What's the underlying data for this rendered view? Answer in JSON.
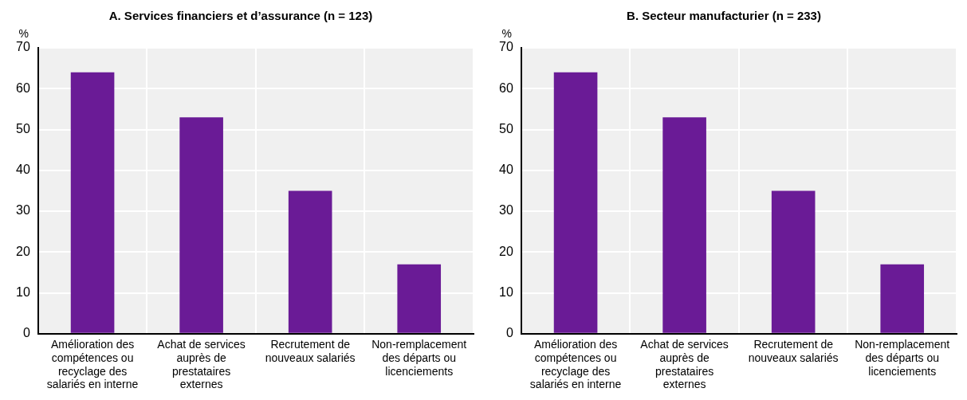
{
  "chart_data": [
    {
      "type": "bar",
      "title": "A. Services financiers et d’assurance (n = 123)",
      "ylabel": "%",
      "categories": [
        "Amélioration des compétences ou recyclage des salariés en interne",
        "Achat de services auprès de prestataires externes",
        "Recrutement de nouveaux salariés",
        "Non-remplacement des départs ou licenciements"
      ],
      "values": [
        64,
        53,
        35,
        17
      ],
      "color": "#6a1b96",
      "ylim": [
        0,
        70
      ],
      "yticks": [
        0,
        10,
        20,
        30,
        40,
        50,
        60,
        70
      ],
      "grid": true
    },
    {
      "type": "bar",
      "title": "B. Secteur manufacturier (n = 233)",
      "ylabel": "%",
      "categories": [
        "Amélioration des compétences ou recyclage des salariés en interne",
        "Achat de services auprès de prestataires externes",
        "Recrutement de nouveaux salariés",
        "Non-remplacement des départs ou licenciements"
      ],
      "values": [
        64,
        53,
        35,
        17
      ],
      "color": "#6a1b96",
      "ylim": [
        0,
        70
      ],
      "yticks": [
        0,
        10,
        20,
        30,
        40,
        50,
        60,
        70
      ],
      "grid": true
    }
  ]
}
